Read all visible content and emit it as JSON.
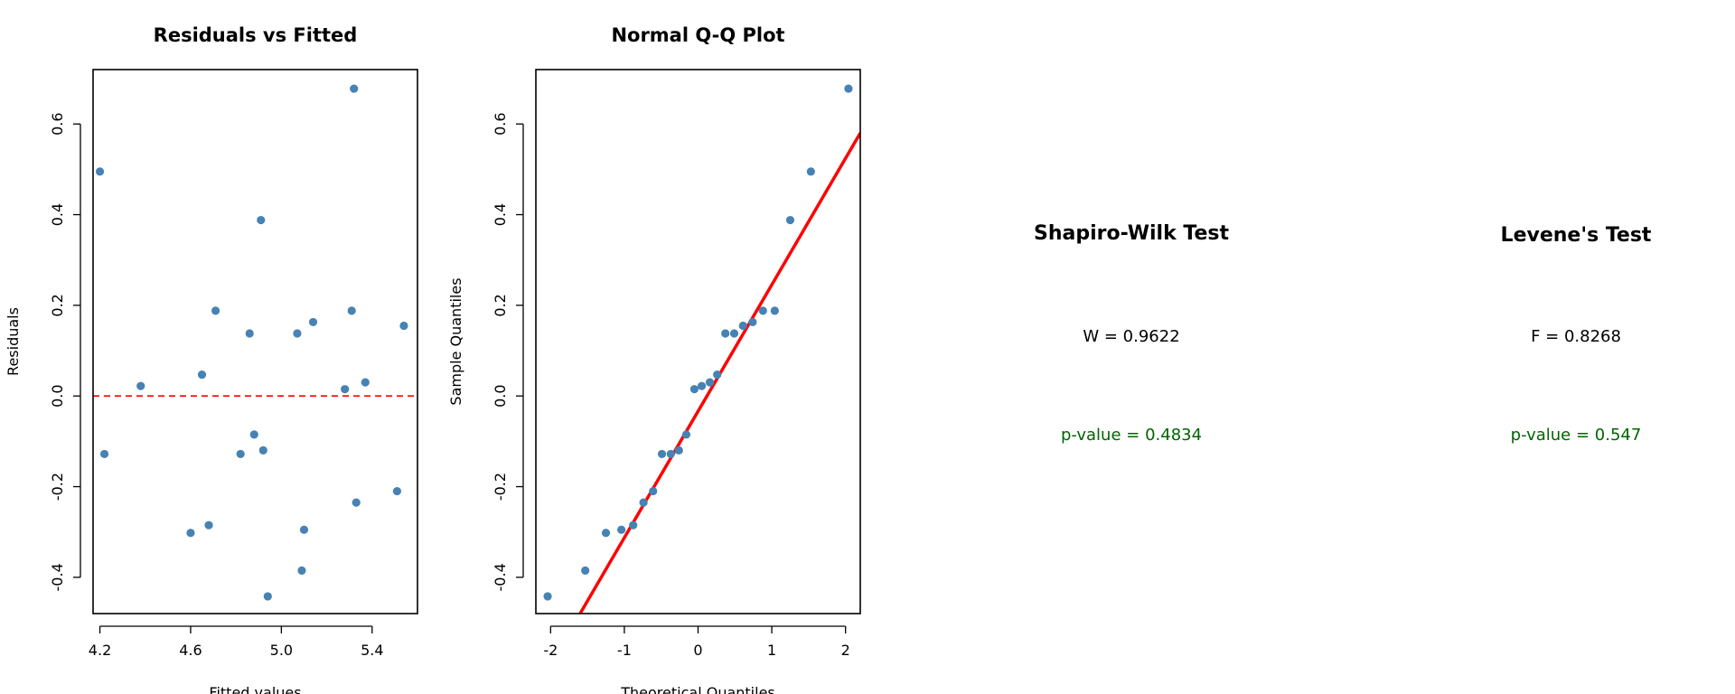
{
  "colors": {
    "points": "#4682b4",
    "refline": "#ff0000",
    "pvalue": "#006400"
  },
  "chart_data": [
    {
      "type": "scatter",
      "title": "Residuals vs Fitted",
      "xlabel": "Fitted values",
      "ylabel": "Residuals",
      "xlim": [
        4.17,
        5.6
      ],
      "ylim": [
        -0.48,
        0.72
      ],
      "xticks": [
        4.2,
        4.6,
        5.0,
        5.4
      ],
      "xtick_labels": [
        "4.2",
        "4.6",
        "5.0",
        "5.4"
      ],
      "yticks": [
        -0.4,
        -0.2,
        0.0,
        0.2,
        0.4,
        0.6
      ],
      "ytick_labels": [
        "-0.4",
        "-0.2",
        "0.0",
        "0.2",
        "0.4",
        "0.6"
      ],
      "reference_line": {
        "y": 0,
        "style": "dashed",
        "color": "#ff0000"
      },
      "points": [
        {
          "x": 4.2,
          "y": 0.495
        },
        {
          "x": 4.22,
          "y": -0.128
        },
        {
          "x": 4.38,
          "y": 0.022
        },
        {
          "x": 4.6,
          "y": -0.302
        },
        {
          "x": 4.65,
          "y": 0.047
        },
        {
          "x": 4.68,
          "y": -0.285
        },
        {
          "x": 4.71,
          "y": 0.188
        },
        {
          "x": 4.82,
          "y": -0.128
        },
        {
          "x": 4.86,
          "y": 0.138
        },
        {
          "x": 4.88,
          "y": -0.085
        },
        {
          "x": 4.91,
          "y": 0.388
        },
        {
          "x": 4.92,
          "y": -0.12
        },
        {
          "x": 4.94,
          "y": -0.442
        },
        {
          "x": 5.07,
          "y": 0.138
        },
        {
          "x": 5.09,
          "y": -0.385
        },
        {
          "x": 5.1,
          "y": -0.295
        },
        {
          "x": 5.14,
          "y": 0.163
        },
        {
          "x": 5.28,
          "y": 0.015
        },
        {
          "x": 5.31,
          "y": 0.188
        },
        {
          "x": 5.32,
          "y": 0.678
        },
        {
          "x": 5.33,
          "y": -0.235
        },
        {
          "x": 5.37,
          "y": 0.03
        },
        {
          "x": 5.51,
          "y": -0.21
        },
        {
          "x": 5.54,
          "y": 0.155
        }
      ]
    },
    {
      "type": "scatter",
      "title": "Normal Q-Q Plot",
      "xlabel": "Theoretical Quantiles",
      "ylabel": "Sample Quantiles",
      "xlim": [
        -2.2,
        2.2
      ],
      "ylim": [
        -0.48,
        0.72
      ],
      "xticks": [
        -2,
        -1,
        0,
        1,
        2
      ],
      "xtick_labels": [
        "-2",
        "-1",
        "0",
        "1",
        "2"
      ],
      "yticks": [
        -0.4,
        -0.2,
        0.0,
        0.2,
        0.4,
        0.6
      ],
      "ytick_labels": [
        "-0.4",
        "-0.2",
        "0.0",
        "0.2",
        "0.4",
        "0.6"
      ],
      "reference_line": {
        "x1": -1.6,
        "y1": -0.48,
        "x2": 2.2,
        "y2": 0.58,
        "color": "#ff0000"
      },
      "points": [
        {
          "x": -2.04,
          "y": -0.442
        },
        {
          "x": -1.53,
          "y": -0.385
        },
        {
          "x": -1.25,
          "y": -0.302
        },
        {
          "x": -1.04,
          "y": -0.295
        },
        {
          "x": -0.88,
          "y": -0.285
        },
        {
          "x": -0.74,
          "y": -0.235
        },
        {
          "x": -0.61,
          "y": -0.21
        },
        {
          "x": -0.49,
          "y": -0.128
        },
        {
          "x": -0.37,
          "y": -0.128
        },
        {
          "x": -0.26,
          "y": -0.12
        },
        {
          "x": -0.16,
          "y": -0.085
        },
        {
          "x": -0.05,
          "y": 0.015
        },
        {
          "x": 0.05,
          "y": 0.022
        },
        {
          "x": 0.16,
          "y": 0.03
        },
        {
          "x": 0.26,
          "y": 0.047
        },
        {
          "x": 0.37,
          "y": 0.138
        },
        {
          "x": 0.49,
          "y": 0.138
        },
        {
          "x": 0.61,
          "y": 0.155
        },
        {
          "x": 0.74,
          "y": 0.163
        },
        {
          "x": 0.88,
          "y": 0.188
        },
        {
          "x": 1.04,
          "y": 0.188
        },
        {
          "x": 1.25,
          "y": 0.388
        },
        {
          "x": 1.53,
          "y": 0.495
        },
        {
          "x": 2.04,
          "y": 0.678
        }
      ]
    }
  ],
  "tests": {
    "shapiro": {
      "title": "Shapiro-Wilk Test",
      "stat": "W = 0.9622",
      "pvalue": "p-value = 0.4834"
    },
    "levene": {
      "title": "Levene's Test",
      "stat": "F = 0.8268",
      "pvalue": "p-value = 0.547"
    }
  }
}
